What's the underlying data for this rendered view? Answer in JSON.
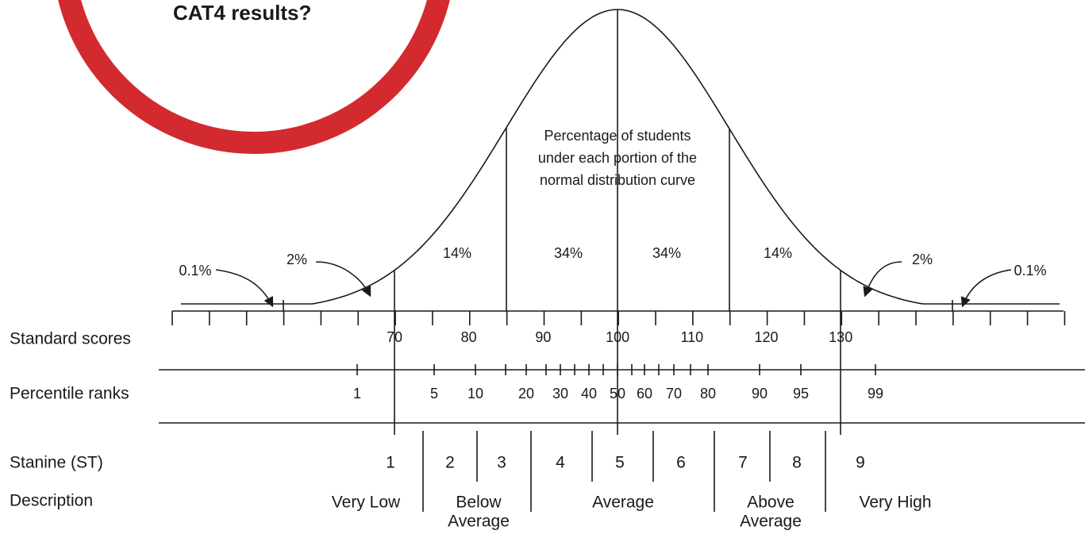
{
  "title": "CAT4 results?",
  "curve_note": [
    "Percentage of students",
    "under each portion of the",
    "normal distribution curve"
  ],
  "portions": [
    "0.1%",
    "2%",
    "14%",
    "34%",
    "34%",
    "14%",
    "2%",
    "0.1%"
  ],
  "rows": {
    "standard_scores": "Standard scores",
    "percentile_ranks": "Percentile ranks",
    "stanine": "Stanine (ST)",
    "description": "Description"
  },
  "standard_scores": [
    "70",
    "80",
    "90",
    "100",
    "110",
    "120",
    "130"
  ],
  "percentile_ranks": [
    "1",
    "5",
    "10",
    "20",
    "30",
    "40",
    "50",
    "60",
    "70",
    "80",
    "90",
    "95",
    "99"
  ],
  "stanines": [
    "1",
    "2",
    "3",
    "4",
    "5",
    "6",
    "7",
    "8",
    "9"
  ],
  "descriptions": [
    [
      "Very Low"
    ],
    [
      "Below",
      "Average"
    ],
    [
      "Average"
    ],
    [
      "Above",
      "Average"
    ],
    [
      "Very High"
    ]
  ]
}
